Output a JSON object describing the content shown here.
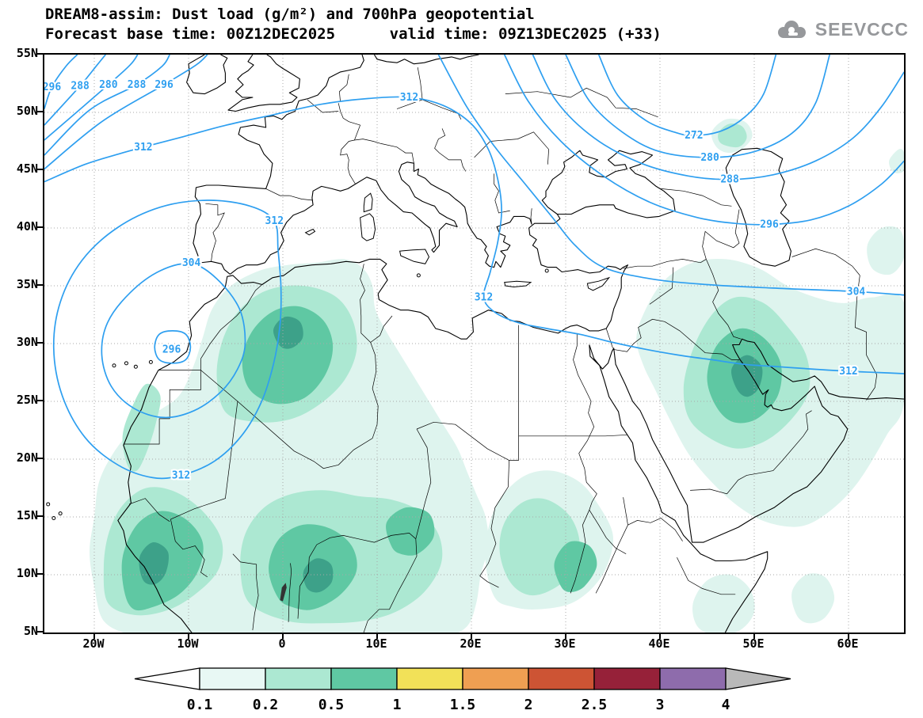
{
  "title": {
    "line1": "DREAM8-assim: Dust load (g/m²) and 700hPa geopotential",
    "line2": "Forecast base time: 00Z12DEC2025      valid time: 09Z13DEC2025 (+33)"
  },
  "brand": {
    "name": "SEEVCCC"
  },
  "axes": {
    "y": [
      {
        "label": "55N",
        "lat": 55
      },
      {
        "label": "50N",
        "lat": 50
      },
      {
        "label": "45N",
        "lat": 45
      },
      {
        "label": "40N",
        "lat": 40
      },
      {
        "label": "35N",
        "lat": 35
      },
      {
        "label": "30N",
        "lat": 30
      },
      {
        "label": "25N",
        "lat": 25
      },
      {
        "label": "20N",
        "lat": 20
      },
      {
        "label": "15N",
        "lat": 15
      },
      {
        "label": "10N",
        "lat": 10
      },
      {
        "label": "5N",
        "lat": 5
      }
    ],
    "x": [
      {
        "label": "20W",
        "lon": -20
      },
      {
        "label": "10W",
        "lon": -10
      },
      {
        "label": "0",
        "lon": 0
      },
      {
        "label": "10E",
        "lon": 10
      },
      {
        "label": "20E",
        "lon": 20
      },
      {
        "label": "30E",
        "lon": 30
      },
      {
        "label": "40E",
        "lon": 40
      },
      {
        "label": "50E",
        "lon": 50
      },
      {
        "label": "60E",
        "lon": 60
      }
    ]
  },
  "dust": {
    "units": "g/m²",
    "levels": [
      0.1,
      0.2,
      0.5,
      1
    ],
    "colors": [
      "#def4ee",
      "#ace8d2",
      "#5fc8a3",
      "#3da189"
    ]
  },
  "contours": {
    "color": "#2e9ff0",
    "levels": [
      272,
      280,
      288,
      296,
      304,
      312
    ],
    "labels": [
      {
        "text": "296",
        "lon": -24.5,
        "lat": 52.2
      },
      {
        "text": "288",
        "lon": -21.5,
        "lat": 52.3
      },
      {
        "text": "280",
        "lon": -18.5,
        "lat": 52.4
      },
      {
        "text": "288",
        "lon": -15.5,
        "lat": 52.4
      },
      {
        "text": "296",
        "lon": -12.6,
        "lat": 52.4
      },
      {
        "text": "312",
        "lon": -14.8,
        "lat": 47.0
      },
      {
        "text": "312",
        "lon": 13.4,
        "lat": 51.3
      },
      {
        "text": "312",
        "lon": 21.3,
        "lat": 34.0
      },
      {
        "text": "312",
        "lon": 60.0,
        "lat": 27.6
      },
      {
        "text": "312",
        "lon": -0.9,
        "lat": 40.6
      },
      {
        "text": "312",
        "lon": -10.8,
        "lat": 18.6
      },
      {
        "text": "304",
        "lon": -9.7,
        "lat": 37.0
      },
      {
        "text": "296",
        "lon": -11.8,
        "lat": 29.5
      },
      {
        "text": "272",
        "lon": 43.6,
        "lat": 48.0
      },
      {
        "text": "280",
        "lon": 45.3,
        "lat": 46.1
      },
      {
        "text": "288",
        "lon": 47.4,
        "lat": 44.2
      },
      {
        "text": "296",
        "lon": 51.6,
        "lat": 40.3
      },
      {
        "text": "304",
        "lon": 60.8,
        "lat": 34.5
      }
    ]
  },
  "colorbar": {
    "labels": [
      "0.1",
      "0.2",
      "0.5",
      "1",
      "1.5",
      "2",
      "2.5",
      "3",
      "4"
    ],
    "segment_colors": [
      "#e8f8f4",
      "#ace8d2",
      "#5fc8a3",
      "#f2e158",
      "#ef9f52",
      "#cd5434",
      "#962139",
      "#8e6cac"
    ],
    "arrow_left_color": "#ffffff",
    "arrow_right_color": "#b9b9b9"
  },
  "chart_data": {
    "type": "contour_map",
    "title": "DREAM8-assim: Dust load (g/m²) and 700hPa geopotential",
    "model": "DREAM8-assim",
    "forecast_base_time": "00Z12DEC2025",
    "valid_time": "09Z13DEC2025 (+33)",
    "lon_range_deg": [
      -25.3,
      65.9
    ],
    "lat_range_deg": [
      5,
      55
    ],
    "grid": "dotted, 5 deg latitude / 10 deg longitude",
    "dust_load_shading": {
      "units": "g/m²",
      "levels": [
        0.1,
        0.2,
        0.5,
        1,
        1.5,
        2,
        2.5,
        3,
        4
      ],
      "colors_used_on_map": [
        "#def4ee",
        "#ace8d2",
        "#5fc8a3",
        "#3da189"
      ],
      "maxima_regions": [
        "Senegal-Mali-Guinea",
        "central Algeria",
        "Niger-Nigeria-Chad",
        "Sudan",
        "Persian Gulf / Iran / eastern Arabia"
      ]
    },
    "geopotential_contours": {
      "pressure_level_hPa": 700,
      "contour_interval": 8,
      "levels_shown": [
        272,
        280,
        288,
        296,
        304,
        312
      ],
      "features": [
        {
          "name": "cut-off low near Canary Islands",
          "center_lon": -11.8,
          "center_lat": 29.6,
          "innermost_contour": 296
        },
        {
          "name": "trough over eastern Europe / Caspian",
          "innermost_contour": 272
        },
        {
          "name": "zonal flow across north-west Atlantic corner",
          "contours": [
            296,
            288,
            280
          ]
        }
      ]
    }
  }
}
